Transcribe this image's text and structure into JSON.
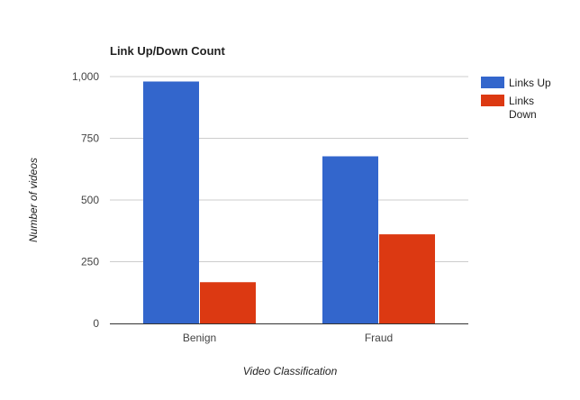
{
  "chart_data": {
    "type": "bar",
    "title": "Link Up/Down Count",
    "xlabel": "Video Classification",
    "ylabel": "Number of videos",
    "categories": [
      "Benign",
      "Fraud"
    ],
    "ylim": [
      0,
      1000
    ],
    "yticks": [
      0,
      250,
      500,
      750,
      1000
    ],
    "ytick_labels": [
      "0",
      "250",
      "500",
      "750",
      "1,000"
    ],
    "grid": true,
    "legend_position": "right",
    "series": [
      {
        "name": "Links Up",
        "legend_lines": [
          "Links Up"
        ],
        "color": "#3366cc",
        "values": [
          980,
          677
        ]
      },
      {
        "name": "Links Down",
        "legend_lines": [
          "Links",
          "Down"
        ],
        "color": "#dc3912",
        "values": [
          167,
          361
        ]
      }
    ]
  }
}
